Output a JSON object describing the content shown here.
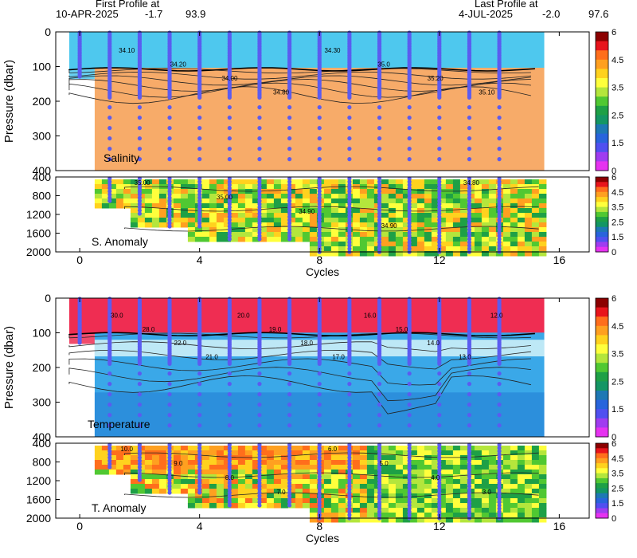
{
  "header": {
    "first_label": "First Profile at",
    "first_date": "10-APR-2025",
    "first_lon": "-1.7",
    "first_lat": "93.9",
    "last_label": "Last Profile at",
    "last_date": "4-JUL-2025",
    "last_lon": "-2.0",
    "last_lat": "97.6"
  },
  "chart_data": [
    {
      "type": "heatmap",
      "panel": "Salinity",
      "ylabel": "Pressure (dbar)",
      "yticks": [
        "0",
        "100",
        "200",
        "300",
        "400"
      ],
      "ylim": [
        0,
        400
      ],
      "xlim": [
        -0.8,
        17
      ],
      "profile_cycles": [
        0,
        1,
        2,
        3,
        4,
        5,
        6,
        7,
        8,
        9,
        10,
        11,
        12,
        13,
        14
      ],
      "contour_labels": [
        "34.10",
        "34.20",
        "34.00",
        "34.80",
        "34.30",
        "35.0",
        "35.20",
        "35.10"
      ]
    },
    {
      "type": "heatmap",
      "panel": "S. Anomaly",
      "yticks": [
        "400",
        "800",
        "1200",
        "1600",
        "2000"
      ],
      "ylim": [
        400,
        2000
      ],
      "contour_labels": [
        "35.00",
        "35.00",
        "34.90",
        "34.90",
        "34.80"
      ]
    },
    {
      "type": "heatmap",
      "panel": "Temperature",
      "ylabel": "Pressure (dbar)",
      "yticks": [
        "0",
        "100",
        "200",
        "300",
        "400"
      ],
      "ylim": [
        0,
        400
      ],
      "contour_labels": [
        "30.0",
        "28.0",
        "22.0",
        "21.0",
        "20.0",
        "19.0",
        "18.0",
        "17.0",
        "16.0",
        "15.0",
        "14.0",
        "13.0",
        "12.0"
      ]
    },
    {
      "type": "heatmap",
      "panel": "T. Anomaly",
      "yticks": [
        "400",
        "800",
        "1200",
        "1600",
        "2000"
      ],
      "ylim": [
        400,
        2000
      ],
      "contour_labels": [
        "10.0",
        "9.0",
        "8.0",
        "7.0",
        "6.0",
        "5.0",
        "4.0",
        "3.0"
      ]
    }
  ],
  "x_axis": {
    "label": "Cycles",
    "ticks": [
      "0",
      "4",
      "8",
      "12",
      "16"
    ]
  },
  "colorbar": {
    "ticks": [
      "6",
      "4.5",
      "3.5",
      "2.5",
      "1.5",
      "0"
    ],
    "colors": [
      "#8b0000",
      "#e8141c",
      "#ff6e1c",
      "#ffa020",
      "#ffd21e",
      "#ffff3c",
      "#b4e63c",
      "#50c832",
      "#1ea046",
      "#149664",
      "#1e78b4",
      "#2864dc",
      "#5050f0",
      "#a03cf0",
      "#e632f0"
    ]
  },
  "panel_colors": {
    "salinity_upper": "#4ec8ee",
    "salinity_lower": "#f7ab69",
    "temp_upper": "#ef2d52",
    "temp_lower": "#3aa8e8",
    "profile_dots": "#5b5cf0"
  }
}
